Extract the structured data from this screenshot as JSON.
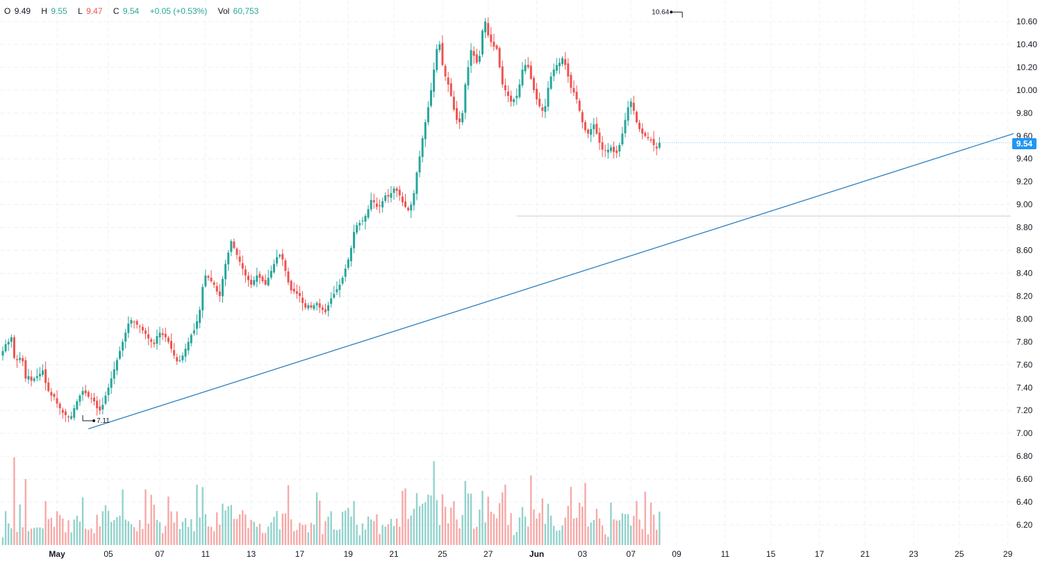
{
  "legend": {
    "o_label": "O",
    "o_value": "9.49",
    "h_label": "H",
    "h_value": "9.55",
    "l_label": "L",
    "l_value": "9.47",
    "c_label": "C",
    "c_value": "9.54",
    "change": "+0.05 (+0.53%)",
    "vol_label": "Vol",
    "vol_value": "60,753"
  },
  "price_tag": "9.54",
  "colors": {
    "up": "#26a69a",
    "down": "#ef5350",
    "trendline": "#2a7fc1",
    "tag": "#2196f3"
  },
  "chart_data": {
    "type": "candlestick",
    "title": "",
    "ylim": [
      6.05,
      10.75
    ],
    "y_ticks": [
      "10.60",
      "10.40",
      "10.20",
      "10.00",
      "9.80",
      "9.60",
      "9.40",
      "9.20",
      "9.00",
      "8.80",
      "8.60",
      "8.40",
      "8.20",
      "8.00",
      "7.80",
      "7.60",
      "7.40",
      "7.20",
      "7.00",
      "6.80",
      "6.60",
      "6.40",
      "6.20"
    ],
    "x_ticks": [
      {
        "label": "May",
        "bold": true,
        "i": 19
      },
      {
        "label": "05",
        "i": 37
      },
      {
        "label": "07",
        "i": 55
      },
      {
        "label": "11",
        "i": 71
      },
      {
        "label": "13",
        "i": 87
      },
      {
        "label": "17",
        "i": 104
      },
      {
        "label": "19",
        "i": 121
      },
      {
        "label": "21",
        "i": 137
      },
      {
        "label": "25",
        "i": 154
      },
      {
        "label": "27",
        "i": 170
      },
      {
        "label": "Jun",
        "bold": true,
        "i": 187
      },
      {
        "label": "03",
        "i": 203
      },
      {
        "label": "07",
        "i": 220
      },
      {
        "label": "09",
        "i": 236
      },
      {
        "label": "11",
        "i": 253
      },
      {
        "label": "15",
        "i": 269
      },
      {
        "label": "17",
        "i": 286
      },
      {
        "label": "21",
        "i": 302
      },
      {
        "label": "23",
        "i": 319
      },
      {
        "label": "25",
        "i": 335
      },
      {
        "label": "29",
        "i": 352
      }
    ],
    "high_label": "10.64",
    "low_label": "7.11",
    "support_level": 8.9,
    "last_price": 9.54,
    "trendline": {
      "start_i": 30,
      "start_price": 7.04,
      "end_i": 354,
      "end_price": 9.62
    },
    "closes": [
      7.72,
      7.78,
      7.8,
      7.84,
      7.66,
      7.64,
      7.66,
      7.63,
      7.48,
      7.5,
      7.46,
      7.48,
      7.5,
      7.52,
      7.55,
      7.44,
      7.37,
      7.33,
      7.32,
      7.26,
      7.22,
      7.18,
      7.16,
      7.14,
      7.15,
      7.22,
      7.28,
      7.33,
      7.37,
      7.35,
      7.32,
      7.3,
      7.28,
      7.22,
      7.2,
      7.25,
      7.33,
      7.4,
      7.48,
      7.56,
      7.64,
      7.72,
      7.8,
      7.88,
      7.96,
      7.99,
      7.97,
      7.95,
      7.93,
      7.9,
      7.87,
      7.83,
      7.8,
      7.78,
      7.85,
      7.88,
      7.86,
      7.84,
      7.8,
      7.74,
      7.68,
      7.63,
      7.64,
      7.68,
      7.74,
      7.8,
      7.86,
      7.9,
      7.98,
      8.08,
      8.28,
      8.38,
      8.36,
      8.33,
      8.3,
      8.24,
      8.2,
      8.35,
      8.48,
      8.58,
      8.68,
      8.62,
      8.56,
      8.5,
      8.44,
      8.38,
      8.34,
      8.3,
      8.34,
      8.38,
      8.36,
      8.33,
      8.3,
      8.36,
      8.42,
      8.48,
      8.54,
      8.56,
      8.52,
      8.42,
      8.32,
      8.25,
      8.24,
      8.22,
      8.2,
      8.14,
      8.1,
      8.12,
      8.1,
      8.12,
      8.14,
      8.1,
      8.08,
      8.06,
      8.12,
      8.18,
      8.22,
      8.26,
      8.3,
      8.36,
      8.44,
      8.52,
      8.62,
      8.76,
      8.82,
      8.84,
      8.86,
      8.9,
      8.96,
      9.04,
      9.02,
      8.98,
      8.99,
      9.03,
      9.08,
      9.07,
      9.1,
      9.14,
      9.12,
      9.08,
      9.02,
      8.98,
      8.95,
      9.0,
      9.1,
      9.28,
      9.42,
      9.58,
      9.72,
      9.85,
      10.0,
      10.18,
      10.36,
      10.4,
      10.22,
      10.12,
      10.05,
      9.95,
      9.83,
      9.74,
      9.72,
      9.8,
      10.05,
      10.2,
      10.35,
      10.3,
      10.24,
      10.3,
      10.52,
      10.6,
      10.48,
      10.42,
      10.38,
      10.36,
      10.2,
      10.05,
      10.0,
      9.95,
      9.9,
      9.92,
      9.95,
      10.05,
      10.18,
      10.22,
      10.2,
      10.1,
      10.0,
      9.92,
      9.86,
      9.82,
      9.86,
      10.02,
      10.12,
      10.18,
      10.22,
      10.24,
      10.28,
      10.22,
      10.12,
      10.02,
      9.98,
      9.92,
      9.82,
      9.72,
      9.65,
      9.62,
      9.66,
      9.7,
      9.62,
      9.54,
      9.48,
      9.47,
      9.48,
      9.5,
      9.46,
      9.45,
      9.52,
      9.62,
      9.74,
      9.85,
      9.9,
      9.82,
      9.72,
      9.66,
      9.62,
      9.6,
      9.58,
      9.56,
      9.52,
      9.49,
      9.54
    ]
  }
}
